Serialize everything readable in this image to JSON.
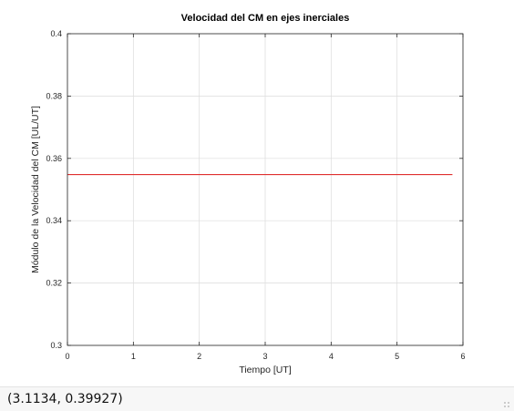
{
  "status_bar": {
    "coordinates": "(3.1134, 0.39927)"
  },
  "colors": {
    "series_line": "#e0302f",
    "grid": "#dcdcdc",
    "axes": "#262626"
  },
  "chart_data": {
    "type": "line",
    "title": "Velocidad del CM en ejes inerciales",
    "xlabel": "Tiempo [UT]",
    "ylabel": "Módulo de la Velocidad del CM [UL/UT]",
    "xlim": [
      0,
      6
    ],
    "ylim": [
      0.3,
      0.4
    ],
    "xticks": [
      0,
      1,
      2,
      3,
      4,
      5,
      6
    ],
    "xtick_labels": [
      "0",
      "1",
      "2",
      "3",
      "4",
      "5",
      "6"
    ],
    "yticks": [
      0.3,
      0.32,
      0.34,
      0.36,
      0.38,
      0.4
    ],
    "ytick_labels": [
      "0.3",
      "0.32",
      "0.34",
      "0.36",
      "0.38",
      "0.4"
    ],
    "grid": true,
    "box": true,
    "series": [
      {
        "color": "#e0302f",
        "x": [
          0.0,
          5.84
        ],
        "y": [
          0.3548,
          0.3548
        ]
      }
    ]
  }
}
